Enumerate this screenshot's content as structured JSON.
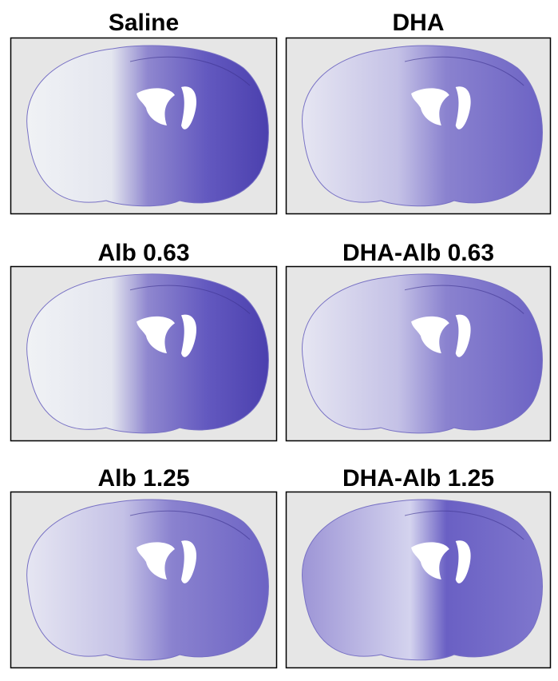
{
  "panels": [
    {
      "title": "Saline"
    },
    {
      "title": "DHA"
    },
    {
      "title": "Alb 0.63"
    },
    {
      "title": "DHA-Alb 0.63"
    },
    {
      "title": "Alb 1.25"
    },
    {
      "title": "DHA-Alb 1.25"
    }
  ]
}
